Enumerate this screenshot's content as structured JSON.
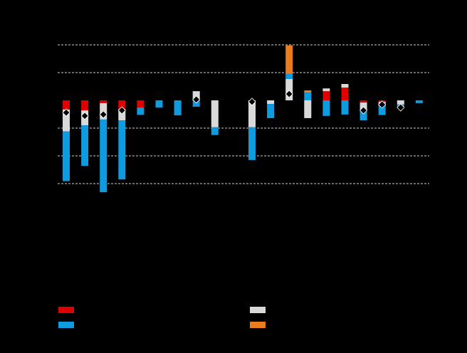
{
  "chart_data": {
    "type": "stacked-bar",
    "categories": [
      null,
      null,
      null,
      null,
      null,
      null,
      null,
      null,
      null,
      null,
      null,
      null,
      null,
      null,
      null,
      null,
      null,
      null,
      null,
      null
    ],
    "series": [
      {
        "color": "#e00000",
        "values": [
          -0.33,
          -0.36,
          -0.1,
          -0.31,
          -0.26,
          null,
          null,
          null,
          null,
          null,
          null,
          null,
          null,
          null,
          0.33,
          0.46,
          -0.08,
          -0.05,
          null,
          null
        ]
      },
      {
        "color": "#d9d9d9",
        "values": [
          -0.79,
          -0.54,
          -0.59,
          -0.41,
          null,
          null,
          null,
          0.33,
          -0.97,
          null,
          -0.97,
          -0.13,
          0.77,
          -0.64,
          0.1,
          0.13,
          -0.31,
          -0.15,
          -0.15,
          null
        ]
      },
      {
        "color": "#0e9be0",
        "values": [
          -1.79,
          -1.46,
          -2.62,
          -2.13,
          -0.26,
          -0.26,
          -0.54,
          -0.23,
          -0.28,
          null,
          -1.18,
          -0.51,
          0.18,
          0.28,
          -0.56,
          -0.51,
          -0.33,
          -0.33,
          -0.1,
          -0.1
        ]
      },
      {
        "color": "#e87c1e",
        "values": [
          null,
          null,
          null,
          null,
          null,
          null,
          null,
          null,
          null,
          null,
          null,
          null,
          1.03,
          0.08,
          null,
          null,
          null,
          null,
          null,
          null
        ]
      }
    ],
    "net": {
      "color": "#000000",
      "values": [
        -0.44,
        -0.56,
        -0.51,
        -0.36,
        null,
        null,
        null,
        0.03,
        null,
        null,
        -0.05,
        null,
        0.23,
        null,
        null,
        null,
        -0.36,
        -0.15,
        -0.26,
        null
      ]
    },
    "ylim": [
      -3.5,
      2
    ],
    "yticks": [
      -3,
      -2,
      -1,
      1,
      2
    ],
    "grid": true
  }
}
